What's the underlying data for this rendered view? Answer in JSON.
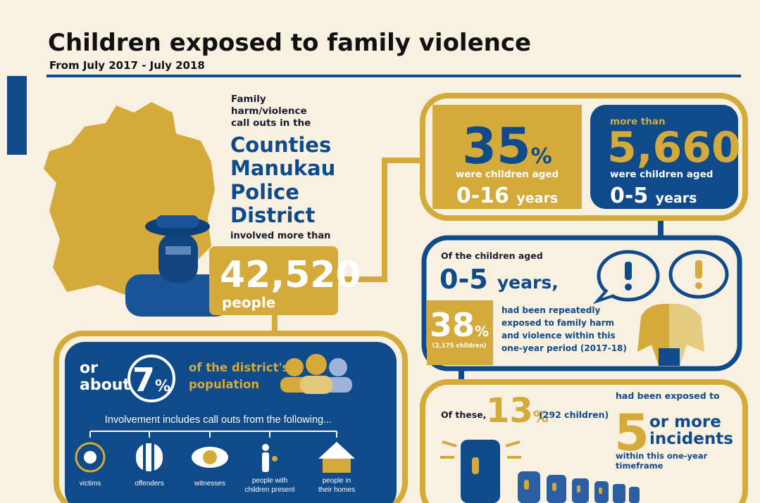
{
  "header": {
    "title": "Children exposed to family violence",
    "subtitle": "From July 2017 - July 2018"
  },
  "district": {
    "intro": [
      "Family",
      "harm/violence",
      "call outs in the"
    ],
    "name": [
      "Counties",
      "Manukau",
      "Police",
      "District"
    ],
    "outro": "involved more than",
    "total": "42,520",
    "total_unit": "people"
  },
  "population": {
    "prefix": [
      "or",
      "about"
    ],
    "percent": "7",
    "percent_sign": "%",
    "suffix": [
      "of the district's",
      "population"
    ],
    "involvement": "Involvement includes call outs from the following...",
    "groups": [
      [
        "victims"
      ],
      [
        "offenders"
      ],
      [
        "witnesses"
      ],
      [
        "people with",
        "children present"
      ],
      [
        "people in",
        "their homes"
      ]
    ]
  },
  "share": {
    "percent": "35",
    "percent_sign": "%",
    "label": "were children aged",
    "age": "0-16",
    "age_unit": "years"
  },
  "count": {
    "qualifier": "more than",
    "number": "5,660",
    "label": "were children aged",
    "age": "0-5",
    "age_unit": "years"
  },
  "repeat": {
    "intro": "Of the children aged",
    "age": "0-5",
    "age_unit": "years,",
    "percent": "38",
    "percent_sign": "%",
    "children": "(2,175 children)",
    "text": [
      "had been repeatedly",
      "exposed to family harm",
      "and violence within this",
      "one-year period (2017-18)"
    ]
  },
  "incidents": {
    "intro": "Of these,",
    "percent": "13",
    "percent_sign": "%",
    "children": "(292 children)",
    "lead": "had been exposed to",
    "number": "5",
    "unit": [
      "or more",
      "incidents"
    ],
    "tail": [
      "within this one-year",
      "timeframe"
    ]
  }
}
